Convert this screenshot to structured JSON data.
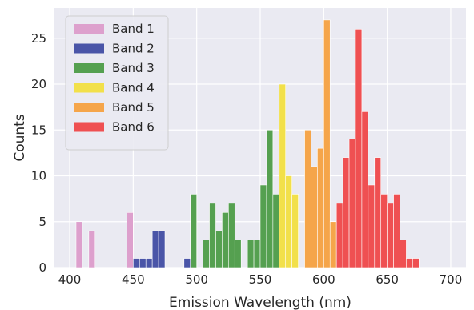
{
  "chart_data": {
    "type": "bar",
    "xlabel": "Emission Wavelength (nm)",
    "ylabel": "Counts",
    "xlim": [
      388,
      712
    ],
    "ylim": [
      0,
      28.3
    ],
    "xticks": [
      400,
      450,
      500,
      550,
      600,
      650,
      700
    ],
    "yticks": [
      0,
      5,
      10,
      15,
      20,
      25
    ],
    "grid": true,
    "legend_position": "top-left",
    "bin_width": 5,
    "series": [
      {
        "name": "Band 1",
        "color": "#dda0cd",
        "bins": [
          [
            405,
            5
          ],
          [
            415,
            4
          ],
          [
            445,
            6
          ]
        ]
      },
      {
        "name": "Band 2",
        "color": "#4a55a8",
        "bins": [
          [
            450,
            1
          ],
          [
            455,
            1
          ],
          [
            460,
            1
          ],
          [
            465,
            4
          ],
          [
            470,
            4
          ],
          [
            490,
            1
          ]
        ]
      },
      {
        "name": "Band 3",
        "color": "#55a050",
        "bins": [
          [
            495,
            8
          ],
          [
            505,
            3
          ],
          [
            510,
            7
          ],
          [
            515,
            4
          ],
          [
            520,
            6
          ],
          [
            525,
            7
          ],
          [
            530,
            3
          ],
          [
            540,
            3
          ],
          [
            545,
            3
          ],
          [
            550,
            9
          ],
          [
            555,
            15
          ],
          [
            560,
            8
          ]
        ]
      },
      {
        "name": "Band 4",
        "color": "#f2e04a",
        "bins": [
          [
            565,
            20
          ],
          [
            570,
            10
          ],
          [
            575,
            8
          ]
        ]
      },
      {
        "name": "Band 5",
        "color": "#f5a54a",
        "bins": [
          [
            585,
            15
          ],
          [
            590,
            11
          ],
          [
            595,
            13
          ],
          [
            600,
            27
          ],
          [
            605,
            5
          ]
        ]
      },
      {
        "name": "Band 6",
        "color": "#ef5052",
        "bins": [
          [
            610,
            7
          ],
          [
            615,
            12
          ],
          [
            620,
            14
          ],
          [
            625,
            26
          ],
          [
            630,
            17
          ],
          [
            635,
            9
          ],
          [
            640,
            12
          ],
          [
            645,
            8
          ],
          [
            650,
            7
          ],
          [
            655,
            8
          ],
          [
            660,
            3
          ],
          [
            665,
            1
          ],
          [
            670,
            1
          ]
        ]
      }
    ]
  }
}
